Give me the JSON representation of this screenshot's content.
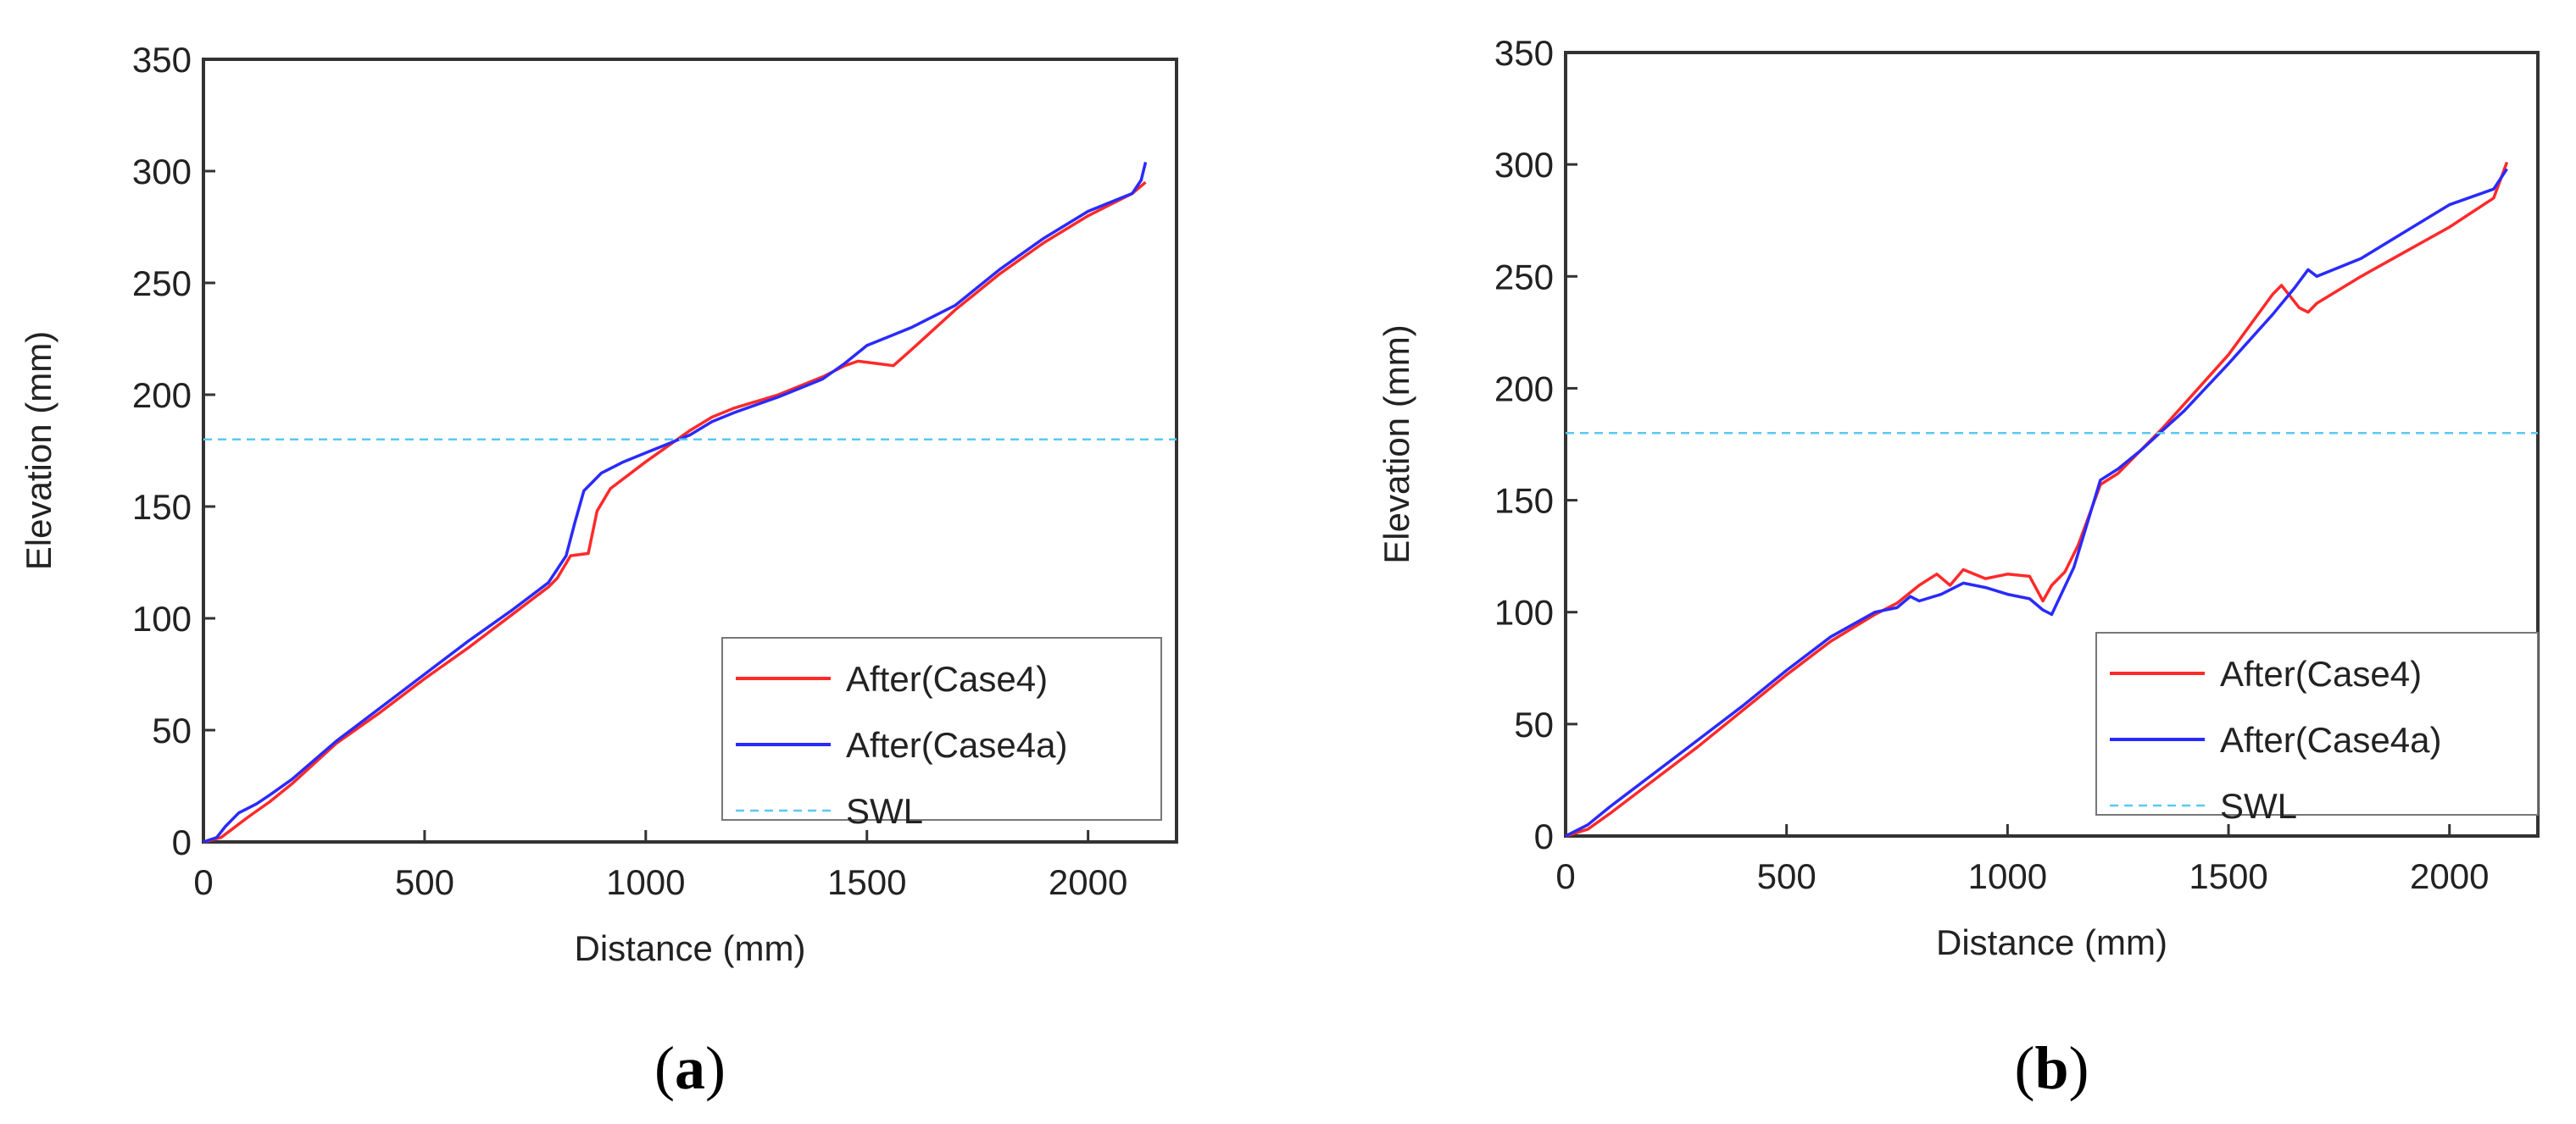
{
  "chart_data": [
    {
      "panel": "a",
      "type": "line",
      "title": "",
      "xlabel": "Distance (mm)",
      "ylabel": "Elevation (mm)",
      "xlim": [
        0,
        2200
      ],
      "ylim": [
        0,
        350
      ],
      "xticks": [
        0,
        500,
        1000,
        1500,
        2000
      ],
      "yticks": [
        0,
        50,
        100,
        150,
        200,
        250,
        300,
        350
      ],
      "legend_position": "bottom-right",
      "caption": {
        "open": "(",
        "letter": "a",
        "close": ")"
      },
      "series": [
        {
          "name": "After(Case4)",
          "color": "#ff2a2a",
          "style": "solid",
          "x": [
            0,
            40,
            60,
            100,
            150,
            200,
            300,
            400,
            500,
            600,
            700,
            780,
            800,
            830,
            870,
            890,
            920,
            1000,
            1050,
            1100,
            1150,
            1200,
            1300,
            1400,
            1450,
            1480,
            1520,
            1560,
            1600,
            1700,
            1800,
            1900,
            2000,
            2100,
            2130
          ],
          "y": [
            0,
            2,
            5,
            11,
            18,
            26,
            44,
            58,
            73,
            87,
            102,
            114,
            118,
            128,
            129,
            148,
            158,
            170,
            177,
            184,
            190,
            194,
            200,
            208,
            213,
            215,
            214,
            213,
            220,
            238,
            254,
            268,
            280,
            290,
            295
          ]
        },
        {
          "name": "After(Case4a)",
          "color": "#2a2aff",
          "style": "solid",
          "x": [
            0,
            30,
            50,
            80,
            120,
            150,
            200,
            300,
            400,
            500,
            600,
            700,
            780,
            820,
            840,
            860,
            900,
            950,
            1000,
            1050,
            1100,
            1150,
            1200,
            1300,
            1400,
            1450,
            1500,
            1550,
            1600,
            1700,
            1800,
            1900,
            2000,
            2100,
            2120,
            2130
          ],
          "y": [
            0,
            2,
            7,
            13,
            17,
            21,
            28,
            45,
            60,
            75,
            90,
            104,
            116,
            128,
            143,
            157,
            165,
            170,
            174,
            178,
            182,
            188,
            192,
            199,
            207,
            214,
            222,
            226,
            230,
            240,
            256,
            270,
            282,
            290,
            296,
            304
          ]
        },
        {
          "name": "SWL",
          "color": "#5bc8f0",
          "style": "dashed",
          "x": [
            0,
            2200
          ],
          "y": [
            180,
            180
          ]
        }
      ]
    },
    {
      "panel": "b",
      "type": "line",
      "title": "",
      "xlabel": "Distance (mm)",
      "ylabel": "Elevation (mm)",
      "xlim": [
        0,
        2200
      ],
      "ylim": [
        0,
        350
      ],
      "xticks": [
        0,
        500,
        1000,
        1500,
        2000
      ],
      "yticks": [
        0,
        50,
        100,
        150,
        200,
        250,
        300,
        350
      ],
      "legend_position": "bottom-right",
      "caption": {
        "open": "(",
        "letter": "b",
        "close": ")"
      },
      "series": [
        {
          "name": "After(Case4)",
          "color": "#ff2a2a",
          "style": "solid",
          "x": [
            0,
            50,
            100,
            200,
            300,
            400,
            500,
            600,
            700,
            750,
            800,
            840,
            870,
            900,
            950,
            1000,
            1050,
            1080,
            1100,
            1130,
            1160,
            1210,
            1250,
            1300,
            1350,
            1400,
            1500,
            1600,
            1620,
            1660,
            1680,
            1700,
            1800,
            1900,
            2000,
            2100,
            2130
          ],
          "y": [
            0,
            3,
            10,
            25,
            40,
            56,
            72,
            87,
            99,
            104,
            112,
            117,
            112,
            119,
            115,
            117,
            116,
            105,
            112,
            118,
            130,
            157,
            162,
            172,
            182,
            193,
            215,
            242,
            246,
            236,
            234,
            238,
            250,
            261,
            272,
            285,
            301
          ]
        },
        {
          "name": "After(Case4a)",
          "color": "#2a2aff",
          "style": "solid",
          "x": [
            0,
            50,
            100,
            200,
            300,
            400,
            500,
            600,
            700,
            750,
            780,
            800,
            850,
            900,
            950,
            1000,
            1050,
            1080,
            1100,
            1150,
            1210,
            1250,
            1300,
            1350,
            1400,
            1500,
            1600,
            1650,
            1680,
            1700,
            1800,
            1900,
            2000,
            2100,
            2130
          ],
          "y": [
            0,
            5,
            13,
            28,
            43,
            58,
            74,
            89,
            100,
            102,
            107,
            105,
            108,
            113,
            111,
            108,
            106,
            101,
            99,
            120,
            159,
            164,
            172,
            181,
            190,
            211,
            233,
            245,
            253,
            250,
            258,
            270,
            282,
            289,
            298
          ]
        },
        {
          "name": "SWL",
          "color": "#5bc8f0",
          "style": "dashed",
          "x": [
            0,
            2200
          ],
          "y": [
            180,
            180
          ]
        }
      ]
    }
  ]
}
